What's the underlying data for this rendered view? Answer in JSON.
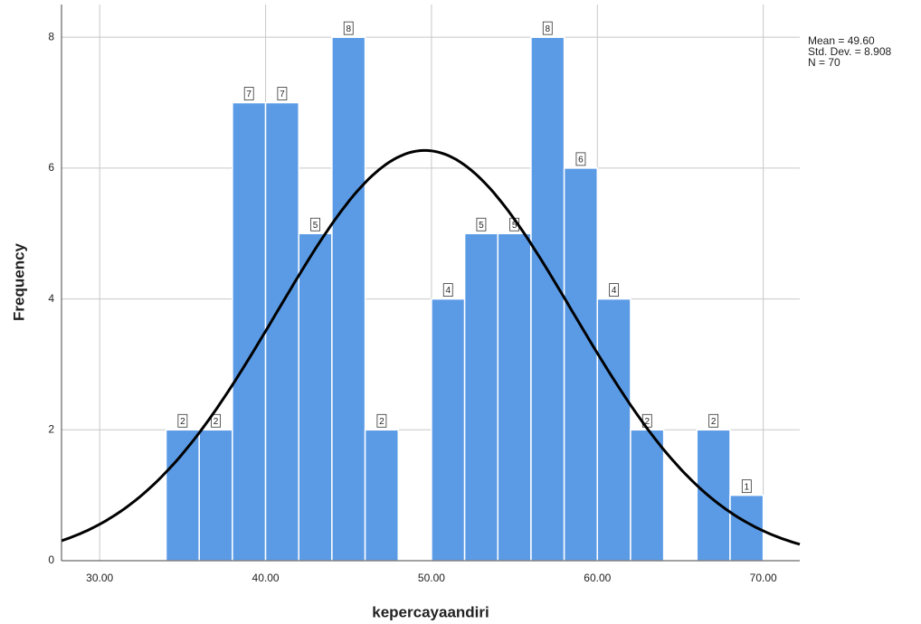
{
  "chart_data": {
    "type": "histogram",
    "x_label": "kepercayaandiri",
    "y_label": "Frequency",
    "bins": [
      34,
      36,
      38,
      40,
      42,
      44,
      46,
      48,
      50,
      52,
      54,
      56,
      58,
      60,
      62,
      64,
      66,
      68,
      70
    ],
    "values": [
      2,
      2,
      7,
      7,
      5,
      8,
      2,
      0,
      4,
      5,
      5,
      8,
      6,
      4,
      2,
      0,
      2,
      1
    ],
    "color": "#5b9be6",
    "curve_color": "#000000",
    "xlim": [
      27.7,
      72.2
    ],
    "ylim": [
      0,
      8.5
    ],
    "xticks": [
      {
        "value": 30,
        "label": "30.00"
      },
      {
        "value": 40,
        "label": "40.00"
      },
      {
        "value": 50,
        "label": "50.00"
      },
      {
        "value": 60,
        "label": "60.00"
      },
      {
        "value": 70,
        "label": "70.00"
      }
    ],
    "yticks": [
      0,
      2,
      4,
      6,
      8
    ],
    "grid": true,
    "stats": {
      "mean": {
        "value": 49.6,
        "label": "Mean = 49.60"
      },
      "sd": {
        "value": 8.908,
        "label": "Std. Dev. = 8.908"
      },
      "n": {
        "value": 70,
        "label": "N = 70"
      }
    }
  }
}
